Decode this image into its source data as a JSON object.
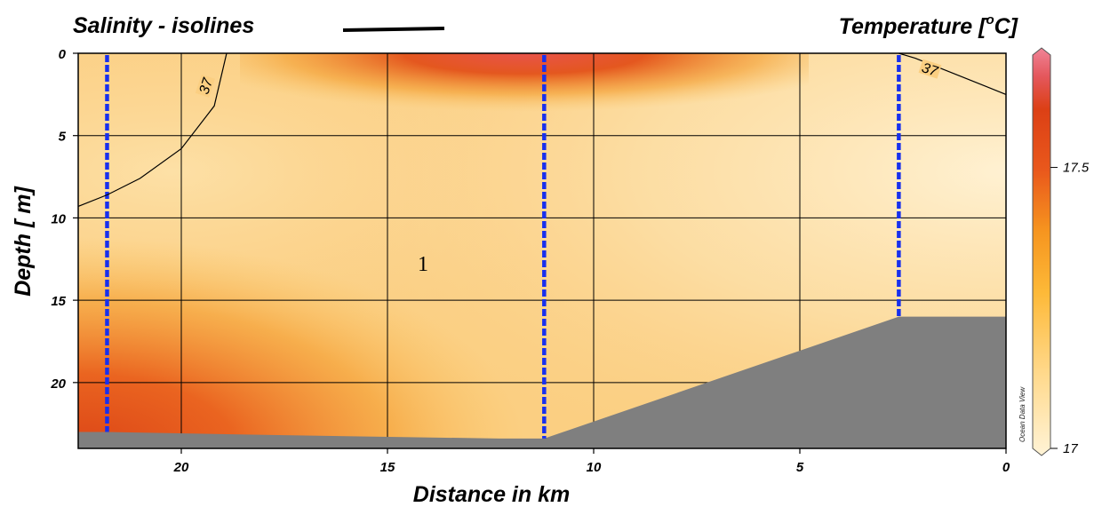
{
  "chart_data": {
    "type": "heatmap",
    "title_left": "Salinity - isolines",
    "title_right": "Temperature  [",
    "title_right_degree": "o",
    "title_right_unit": "C]",
    "xlabel": "Distance in km",
    "ylabel": "Depth  [ m]",
    "xlim": [
      22.5,
      0
    ],
    "ylim": [
      0,
      24
    ],
    "x_ticks": [
      20,
      15,
      10,
      5,
      0
    ],
    "y_ticks": [
      0,
      5,
      10,
      15,
      20
    ],
    "grid": true,
    "stations_km": [
      21.8,
      11.2,
      2.6
    ],
    "station_max_depth_m": [
      23,
      23.4,
      16
    ],
    "bottom_profile": {
      "x_km": [
        22.5,
        21.8,
        17.5,
        12.3,
        11.2,
        2.6,
        0
      ],
      "depth_m": [
        23.0,
        23.0,
        23.2,
        23.4,
        23.4,
        16.0,
        16.0
      ]
    },
    "salinity_isolines": [
      {
        "value": 37,
        "label": "37",
        "x_km": [
          22.5,
          21.8,
          21.0,
          20.0,
          19.2,
          18.9
        ],
        "depth_m": [
          9.3,
          8.6,
          7.6,
          5.8,
          3.2,
          0.0
        ]
      },
      {
        "value": 37,
        "label": "37",
        "x_km": [
          2.6,
          2.2,
          1.2,
          0.5,
          0.0
        ],
        "depth_m": [
          0.0,
          0.3,
          1.3,
          2.0,
          2.5
        ]
      }
    ],
    "colorbar": {
      "label": "Temperature",
      "min": 17,
      "max": 17.7,
      "ticks": [
        17.5,
        17
      ],
      "colors": [
        "#fff1cf",
        "#ffd88a",
        "#fdbb3f",
        "#f79a24",
        "#ea5b1e",
        "#d94116",
        "#e6595f",
        "#f07a8e"
      ],
      "credit": "Ocean Data View"
    },
    "annotation": "1"
  }
}
